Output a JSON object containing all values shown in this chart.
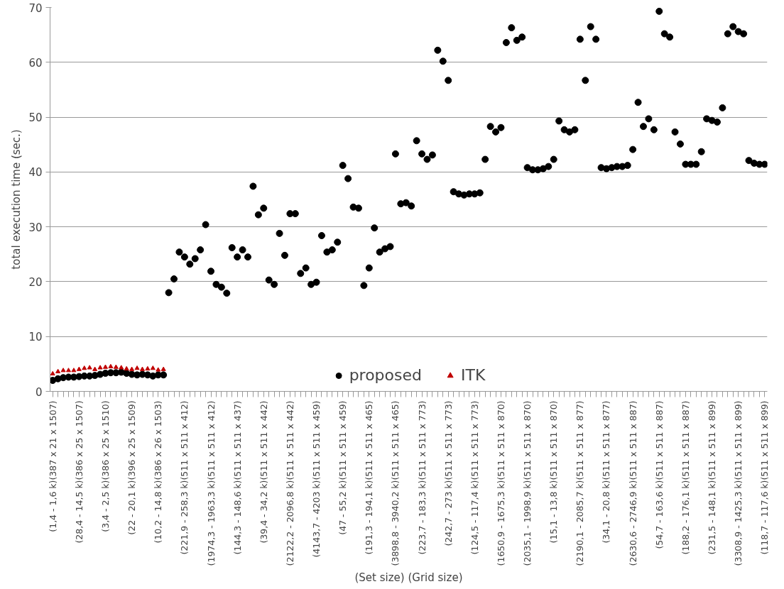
{
  "chart_data": {
    "type": "scatter",
    "xlabel": "(Set size) (Grid size)",
    "ylabel": "total execution time (sec.)",
    "categories": [
      "(1,4 - 1,6 k)(387 x 21 x 1507)",
      null,
      null,
      null,
      null,
      "(28,4 - 14,5 k)(386 x 25 x 1507)",
      null,
      null,
      null,
      null,
      "(3,4 - 2,5 k)(386 x 25 x 1510)",
      null,
      null,
      null,
      null,
      "(22 - 20,1 k)(396 x 25 x 1509)",
      null,
      null,
      null,
      null,
      "(10,2 - 14,8 k)(386 x 26 x 1503)",
      null,
      null,
      null,
      null,
      "(221,9 - 258,3 k)(511 x 511 x 412)",
      null,
      null,
      null,
      null,
      "(1974,3 - 1963,3 k)(511 x 511 x 412)",
      null,
      null,
      null,
      null,
      "(144,3 - 148,6 k)(511 x 511 x 437)",
      null,
      null,
      null,
      null,
      "(39,4 - 34,2 k)(511 x 511 x 442)",
      null,
      null,
      null,
      null,
      "(2122,2 - 2096,8 k)(511 x 511 x 442)",
      null,
      null,
      null,
      null,
      "(4143,7 - 4203 k)(511 x 511 x 459)",
      null,
      null,
      null,
      null,
      "(47 - 55,2 k)(511 x 511 x 459)",
      null,
      null,
      null,
      null,
      "(191,3 - 194,1 k)(511 x 511 x 465)",
      null,
      null,
      null,
      null,
      "(3898,8 - 3940,2 k)(511 x 511 x 465)",
      null,
      null,
      null,
      null,
      "(223,7 - 183,3 k)(511 x 511 x 773)",
      null,
      null,
      null,
      null,
      "(242,7 - 273 k)(511 x 511 x 773)",
      null,
      null,
      null,
      null,
      "(124,5 - 117,4 k)(511 x 511 x 773)",
      null,
      null,
      null,
      null,
      "(1650,9 - 1675,3 k)(511 x 511 x 870)",
      null,
      null,
      null,
      null,
      "(2035,1 - 1998,9 k)(511 x 511 x 870)",
      null,
      null,
      null,
      null,
      "(15,1 - 13,8 k)(511 x 511 x 870)",
      null,
      null,
      null,
      null,
      "(2190,1 - 2085,7 k)(511 x 511 x 877)",
      null,
      null,
      null,
      null,
      "(34,1 - 20,8 k)(511 x 511 x 877)",
      null,
      null,
      null,
      null,
      "(2630,6 - 2746,9 k)(511 x 511 x 887)",
      null,
      null,
      null,
      null,
      "(54,7 - 163,6 k)(511 x 511 x 887)",
      null,
      null,
      null,
      null,
      "(188,2 - 176,1 k)(511 x 511 x 887)",
      null,
      null,
      null,
      null,
      "(231,5 - 148,1 k)(511 x 511 x 899)",
      null,
      null,
      null,
      null,
      "(3308,9 - 1425,3 k)(511 x 511 x 899)",
      null,
      null,
      null,
      null,
      "(118,7 - 117,6 k)(511 x 511 x 899)"
    ],
    "series": [
      {
        "name": "proposed",
        "color": "#000000",
        "marker": "circle",
        "values": [
          2,
          2.3,
          2.5,
          2.6,
          2.6,
          2.7,
          2.8,
          2.8,
          2.9,
          3.1,
          3.3,
          3.4,
          3.4,
          3.5,
          3.3,
          3.1,
          3,
          3.1,
          3,
          2.8,
          3,
          3,
          18,
          20.5,
          25.4,
          24.5,
          23.2,
          24.2,
          25.8,
          30.4,
          21.9,
          19.5,
          19,
          17.9,
          26.2,
          24.5,
          25.8,
          24.5,
          37.4,
          32.2,
          33.4,
          20.3,
          19.5,
          28.8,
          24.8,
          32.4,
          32.4,
          21.5,
          22.5,
          19.5,
          19.9,
          28.4,
          25.4,
          25.8,
          27.2,
          41.2,
          38.8,
          33.6,
          33.4,
          19.3,
          22.5,
          29.8,
          25.4,
          26,
          26.4,
          43.3,
          34.2,
          34.4,
          33.8,
          45.7,
          43.3,
          42.3,
          43.1,
          62.2,
          60.2,
          56.7,
          36.4,
          36,
          35.8,
          36,
          36,
          36.2,
          42.3,
          48.3,
          47.3,
          48.1,
          63.6,
          66.3,
          64,
          64.6,
          40.8,
          40.4,
          40.4,
          40.6,
          41,
          42.3,
          49.3,
          47.7,
          47.3,
          47.7,
          64.2,
          56.7,
          66.5,
          64.2,
          40.8,
          40.6,
          40.8,
          41,
          41,
          41.2,
          44.1,
          52.7,
          48.3,
          49.7,
          47.7,
          69.3,
          65.2,
          64.6,
          47.3,
          45.1,
          41.4,
          41.4,
          41.4,
          43.7,
          49.7,
          49.4,
          49.1,
          51.7,
          65.2,
          66.5,
          65.6,
          65.2,
          42.1,
          41.6,
          41.4,
          41.4
        ]
      },
      {
        "name": "ITK",
        "color": "#c00000",
        "marker": "triangle",
        "values": [
          3.2,
          3.6,
          3.8,
          3.8,
          3.8,
          4,
          4.2,
          4.3,
          4,
          4.3,
          4.4,
          4.5,
          4.4,
          4.3,
          4.1,
          4,
          4.2,
          4,
          4.1,
          4.2,
          3.9,
          4,
          null,
          null,
          null,
          null,
          null,
          null,
          null,
          null,
          null,
          null,
          null,
          null,
          null,
          null,
          null,
          null,
          null,
          null,
          null,
          null,
          null,
          null,
          null,
          null,
          null,
          null,
          null,
          null,
          null,
          null,
          null,
          null,
          null,
          null,
          null,
          null,
          null,
          null,
          null,
          null,
          null,
          null,
          null,
          null,
          null,
          null,
          null,
          null,
          null,
          null,
          null,
          null,
          null,
          null,
          null,
          null,
          null,
          null,
          null,
          null,
          null,
          null,
          null,
          null,
          null,
          null,
          null,
          null,
          null,
          null,
          null,
          null,
          null,
          null,
          null,
          null,
          null,
          null,
          null,
          null,
          null,
          null,
          null,
          null,
          null,
          null,
          null,
          null,
          null,
          null,
          null,
          null,
          null,
          null,
          null,
          null,
          null,
          null,
          null,
          null,
          null,
          null,
          null,
          null,
          null,
          null,
          null,
          null,
          null,
          null,
          null,
          null,
          null,
          null
        ]
      }
    ],
    "ylim": [
      0,
      70
    ],
    "yticks": [
      0,
      10,
      20,
      30,
      40,
      50,
      60,
      70
    ],
    "grid": "y",
    "legend": "bottom"
  }
}
